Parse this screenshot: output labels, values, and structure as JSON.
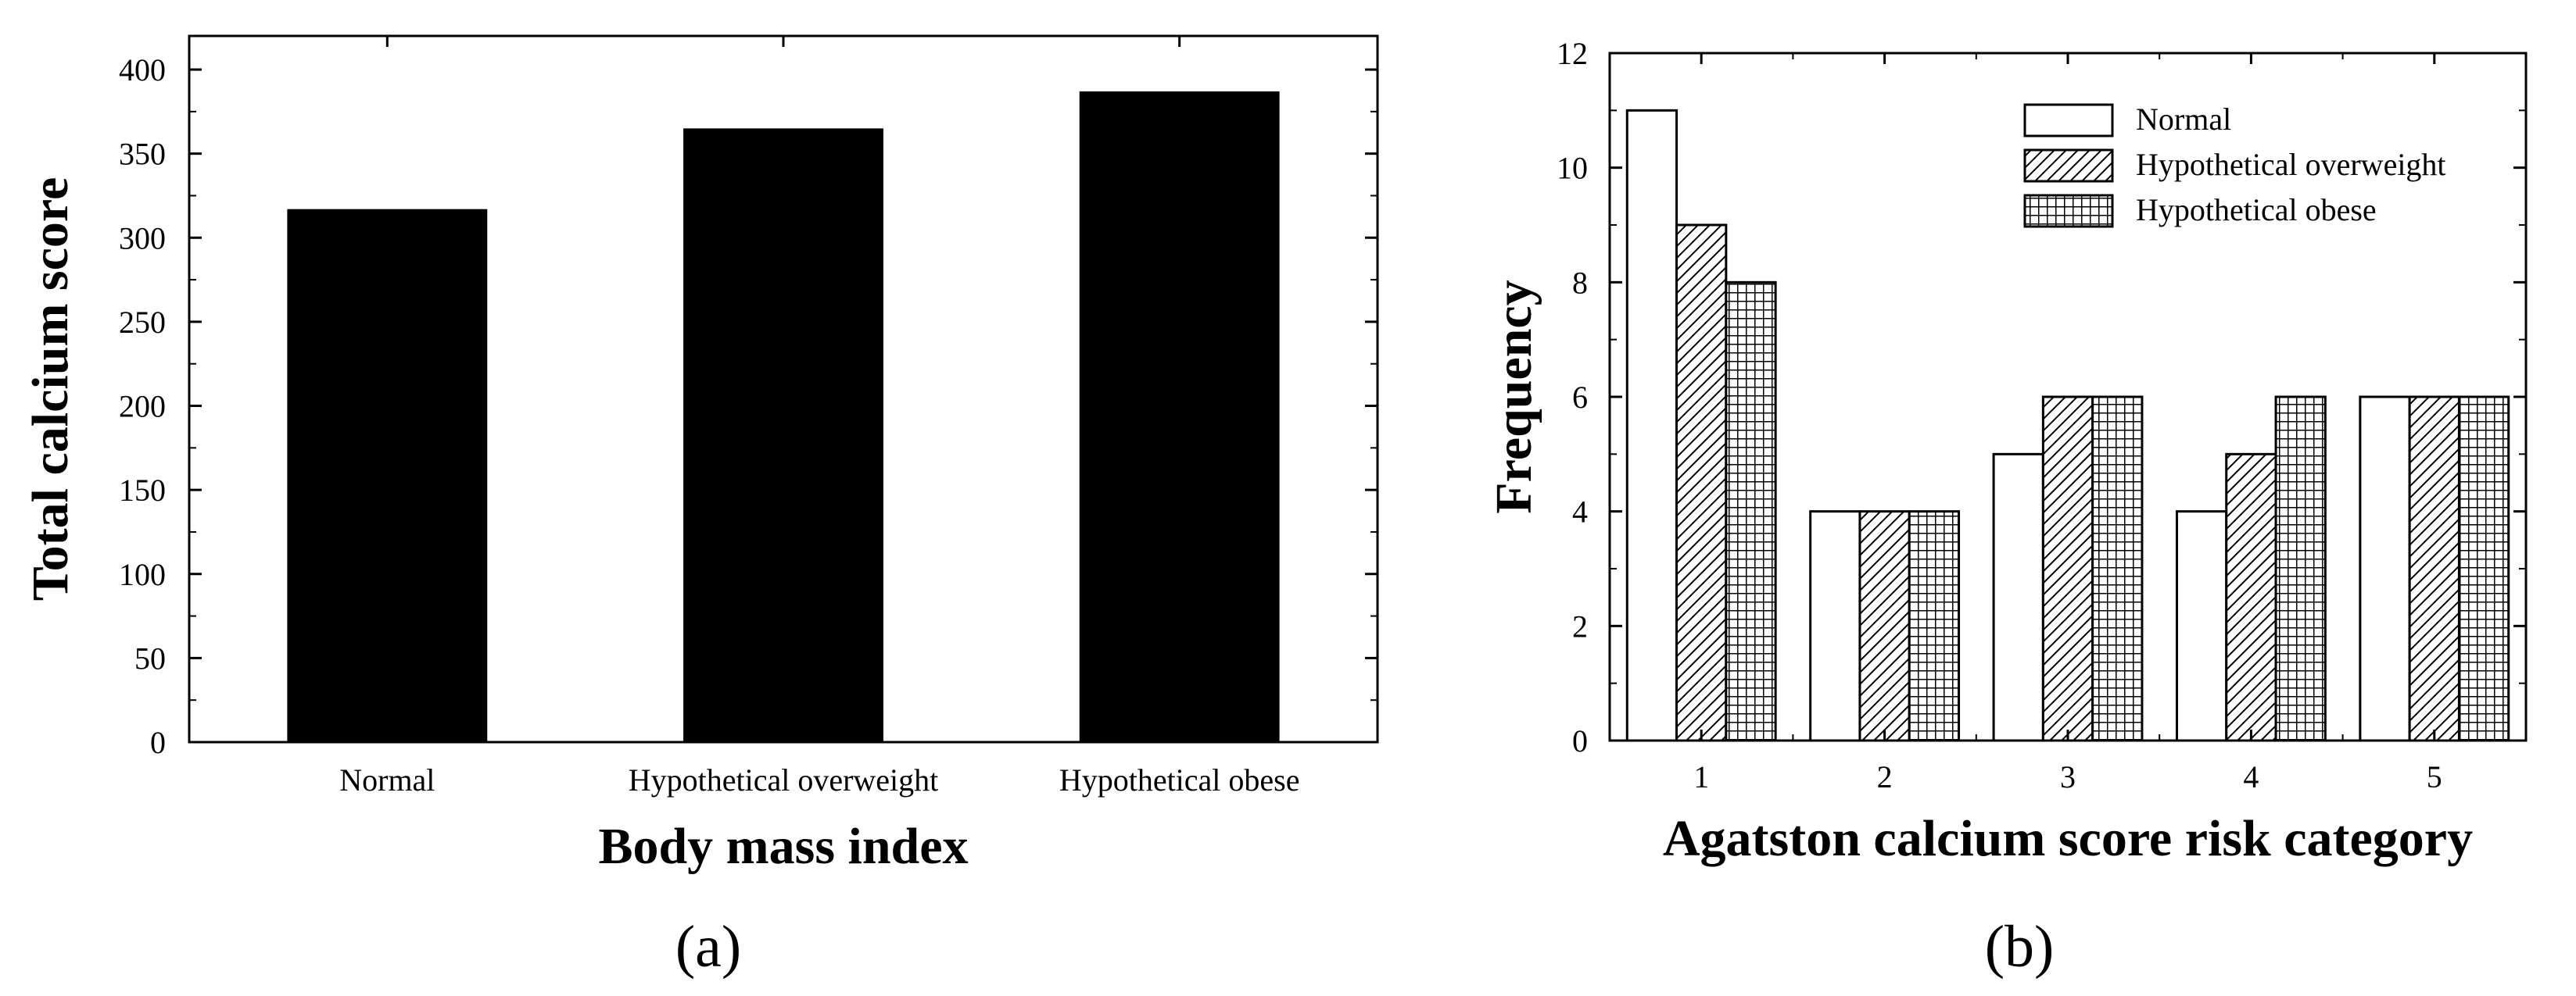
{
  "chart_data": [
    {
      "type": "bar",
      "panel_label": "(a)",
      "categories": [
        "Normal",
        "Hypothetical overweight",
        "Hypothetical obese"
      ],
      "values": [
        317,
        365,
        387
      ],
      "xlabel": "Body mass index",
      "ylabel": "Total calcium score",
      "ylim": [
        0,
        420
      ],
      "yticks": [
        0,
        50,
        100,
        150,
        200,
        250,
        300,
        350,
        400
      ],
      "bar_color": "#000000",
      "grid": false
    },
    {
      "type": "bar",
      "panel_label": "(b)",
      "categories": [
        "1",
        "2",
        "3",
        "4",
        "5"
      ],
      "series": [
        {
          "name": "Normal",
          "values": [
            11,
            4,
            5,
            4,
            6
          ],
          "pattern": "empty"
        },
        {
          "name": "Hypothetical overweight",
          "values": [
            9,
            4,
            6,
            5,
            6
          ],
          "pattern": "diagonal-hatch"
        },
        {
          "name": "Hypothetical obese",
          "values": [
            8,
            4,
            6,
            6,
            6
          ],
          "pattern": "cross-hatch"
        }
      ],
      "xlabel": "Agatston calcium score risk category",
      "ylabel": "Frequency",
      "ylim": [
        0,
        12
      ],
      "yticks": [
        0,
        2,
        4,
        6,
        8,
        10,
        12
      ],
      "legend_position": "top-right",
      "grid": false
    }
  ],
  "colors": {
    "ink": "#000000",
    "background": "#ffffff"
  }
}
